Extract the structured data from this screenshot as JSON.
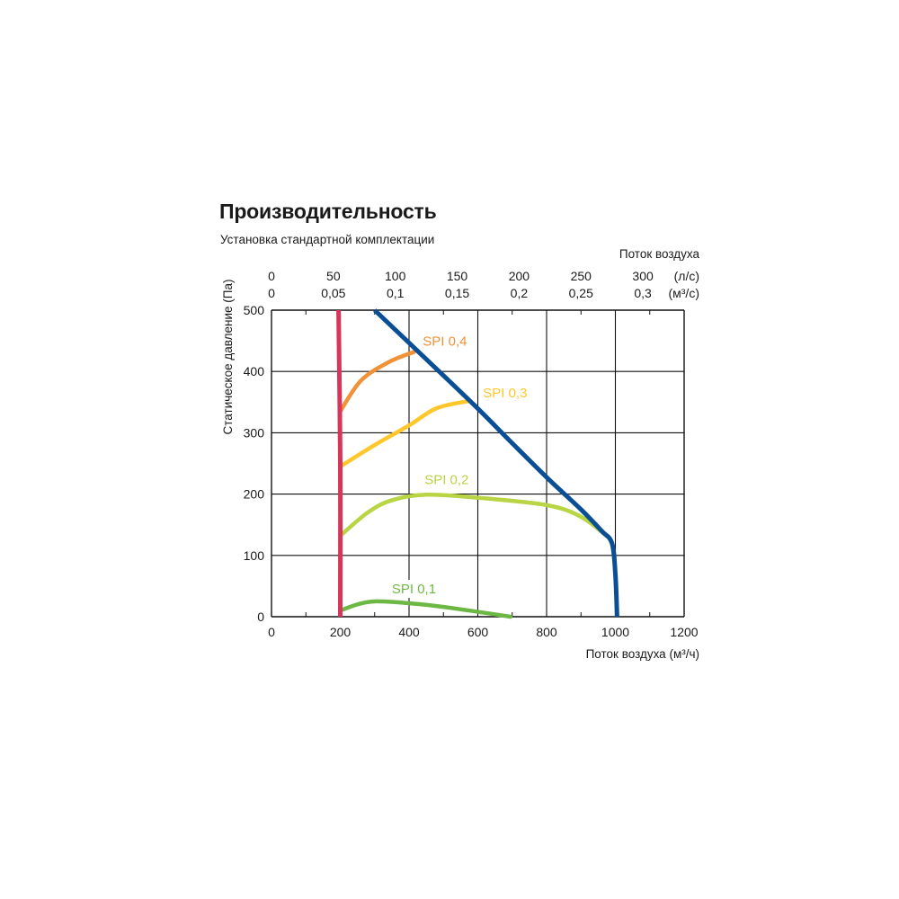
{
  "header": {
    "title": "Производительность",
    "subtitle": "Установка стандартной комплектации"
  },
  "chart_data": {
    "type": "line",
    "title": "Производительность",
    "subtitle": "Установка стандартной комплектации",
    "xlabel": "Поток воздуха (м³/ч)",
    "ylabel": "Статическое давление (Па)",
    "xlim": [
      0,
      1200
    ],
    "ylim": [
      0,
      500
    ],
    "x_ticks": [
      "0",
      "200",
      "400",
      "600",
      "800",
      "1000",
      "1200"
    ],
    "y_ticks": [
      "0",
      "100",
      "200",
      "300",
      "400",
      "500"
    ],
    "grid": true,
    "top_axis": {
      "label": "Поток воздуха",
      "rows": [
        {
          "unit": "(л/с)",
          "ticks": [
            {
              "label": "0",
              "x": 0
            },
            {
              "label": "50",
              "x": 180
            },
            {
              "label": "100",
              "x": 360
            },
            {
              "label": "150",
              "x": 540
            },
            {
              "label": "200",
              "x": 720
            },
            {
              "label": "250",
              "x": 900
            },
            {
              "label": "300",
              "x": 1080
            }
          ]
        },
        {
          "unit": "(м³/с)",
          "ticks": [
            {
              "label": "0",
              "x": 0
            },
            {
              "label": "0,05",
              "x": 180
            },
            {
              "label": "0,1",
              "x": 360
            },
            {
              "label": "0,15",
              "x": 540
            },
            {
              "label": "0,2",
              "x": 720
            },
            {
              "label": "0,25",
              "x": 900
            },
            {
              "label": "0,3",
              "x": 1080
            }
          ]
        }
      ]
    },
    "series": [
      {
        "name": "SPI 0,4",
        "color": "#f0923a",
        "points": [
          [
            200,
            335
          ],
          [
            260,
            385
          ],
          [
            340,
            415
          ],
          [
            415,
            432
          ]
        ]
      },
      {
        "name": "SPI 0,3",
        "color": "#ffc72c",
        "points": [
          [
            200,
            245
          ],
          [
            300,
            280
          ],
          [
            400,
            312
          ],
          [
            480,
            340
          ],
          [
            575,
            352
          ]
        ]
      },
      {
        "name": "SPI 0,2",
        "color": "#b9d444",
        "points": [
          [
            200,
            132
          ],
          [
            280,
            170
          ],
          [
            350,
            190
          ],
          [
            450,
            199
          ],
          [
            600,
            194
          ],
          [
            800,
            182
          ],
          [
            900,
            163
          ],
          [
            985,
            127
          ]
        ]
      },
      {
        "name": "SPI 0,1",
        "color": "#6db844",
        "points": [
          [
            200,
            10
          ],
          [
            250,
            20
          ],
          [
            300,
            25
          ],
          [
            400,
            22
          ],
          [
            500,
            16
          ],
          [
            600,
            8
          ],
          [
            695,
            0
          ]
        ]
      }
    ],
    "limits": [
      {
        "color": "#d8355a",
        "points": [
          [
            195,
            500
          ],
          [
            200,
            250
          ],
          [
            200,
            0
          ]
        ]
      },
      {
        "color": "#0a4f96",
        "points": [
          [
            300,
            500
          ],
          [
            450,
            420
          ],
          [
            590,
            345
          ],
          [
            700,
            283
          ],
          [
            810,
            222
          ],
          [
            900,
            175
          ],
          [
            960,
            140
          ],
          [
            990,
            120
          ],
          [
            1000,
            70
          ],
          [
            1005,
            0
          ]
        ]
      }
    ],
    "labels": [
      {
        "text": "SPI 0,4",
        "x": 440,
        "y": 442,
        "color": "#f0923a"
      },
      {
        "text": "SPI 0,3",
        "x": 615,
        "y": 358,
        "color": "#ffc72c"
      },
      {
        "text": "SPI 0,2",
        "x": 445,
        "y": 216,
        "color": "#b9d444"
      },
      {
        "text": "SPI 0,1",
        "x": 350,
        "y": 38,
        "color": "#6db844"
      }
    ]
  }
}
